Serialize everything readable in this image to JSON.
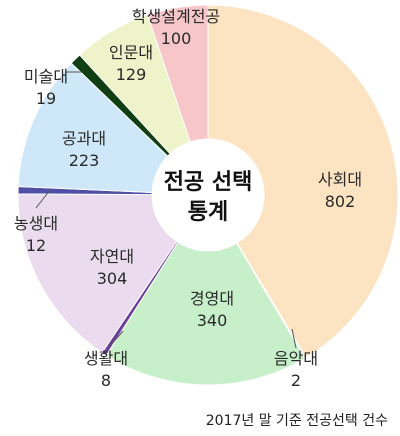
{
  "chart_data": {
    "type": "pie",
    "center_title_lines": [
      "전공 선택",
      "통계"
    ],
    "note": "2017년 말 기준 전공선택 건수",
    "slices": [
      {
        "name": "사회대",
        "value": 802,
        "color": "#fce3c2"
      },
      {
        "name": "음악대",
        "value": 2,
        "color": "#1d3a7a"
      },
      {
        "name": "경영대",
        "value": 340,
        "color": "#c7efc9"
      },
      {
        "name": "생활대",
        "value": 8,
        "color": "#6a3d98"
      },
      {
        "name": "자연대",
        "value": 304,
        "color": "#eadcee"
      },
      {
        "name": "농생대",
        "value": 12,
        "color": "#4f4fa8"
      },
      {
        "name": "공과대",
        "value": 223,
        "color": "#cfe8f9"
      },
      {
        "name": "미술대",
        "value": 19,
        "color": "#0f3f12"
      },
      {
        "name": "인문대",
        "value": 129,
        "color": "#eef3c9"
      },
      {
        "name": "학생설계전공",
        "value": 100,
        "color": "#f6c6c9"
      }
    ]
  }
}
